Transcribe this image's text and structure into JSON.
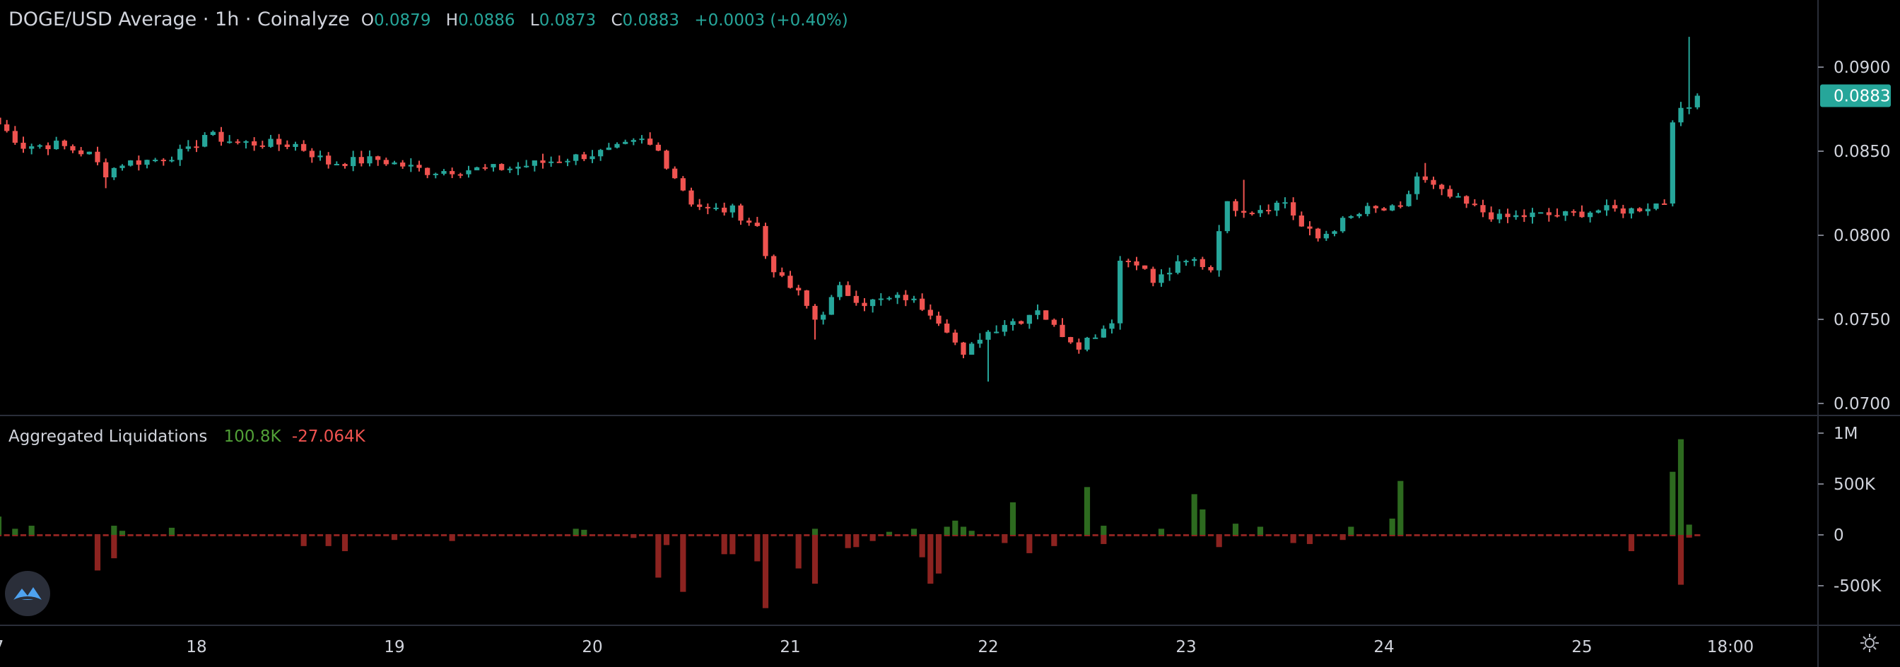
{
  "header": {
    "title": "DOGE/USD Average · 1h · Coinalyze",
    "ohlc": [
      {
        "key": "O",
        "value": "0.0879"
      },
      {
        "key": "H",
        "value": "0.0886"
      },
      {
        "key": "L",
        "value": "0.0873"
      },
      {
        "key": "C",
        "value": "0.0883"
      }
    ],
    "change": "+0.0003 (+0.40%)"
  },
  "indicator": {
    "name": "Aggregated Liquidations",
    "long_value": "100.8K",
    "short_value": "-27.064K"
  },
  "colors": {
    "up": "#26a69a",
    "down": "#ef5350",
    "liq_long": "#2d6a1f",
    "liq_short": "#8c2320",
    "last_price_bg": "#26a69a",
    "grid_sep": "#2a2e39",
    "axis_text": "#d1d4dc"
  },
  "icons": {
    "logo": "coinalyze-logo-icon",
    "settings": "gear-icon"
  },
  "chart_data": [
    {
      "type": "candlestick",
      "title": "DOGE/USD Average · 1h · Coinalyze",
      "ylim": [
        0.07,
        0.092
      ],
      "yticks": [
        {
          "value": 0.09,
          "label": "0.0900"
        },
        {
          "value": 0.085,
          "label": "0.0850"
        },
        {
          "value": 0.08,
          "label": "0.0800"
        },
        {
          "value": 0.075,
          "label": "0.0750"
        },
        {
          "value": 0.07,
          "label": "0.0700"
        }
      ],
      "last_price": {
        "value": 0.0883,
        "label": "0.0883"
      },
      "x_unit": "hours",
      "xlim": [
        0,
        204
      ],
      "xticks": [
        {
          "value": 0,
          "label": "7"
        },
        {
          "value": 24,
          "label": "18"
        },
        {
          "value": 48,
          "label": "19"
        },
        {
          "value": 72,
          "label": "20"
        },
        {
          "value": 96,
          "label": "21"
        },
        {
          "value": 120,
          "label": "22"
        },
        {
          "value": 144,
          "label": "23"
        },
        {
          "value": 168,
          "label": "24"
        },
        {
          "value": 192,
          "label": "25"
        },
        {
          "value": 210,
          "label": "18:00"
        }
      ],
      "keypoints_close": [
        [
          0,
          0.0866
        ],
        [
          3,
          0.0853
        ],
        [
          7,
          0.0854
        ],
        [
          11,
          0.0848
        ],
        [
          13,
          0.0837
        ],
        [
          15,
          0.0843
        ],
        [
          19,
          0.0845
        ],
        [
          23,
          0.085
        ],
        [
          25,
          0.086
        ],
        [
          29,
          0.0855
        ],
        [
          36,
          0.0854
        ],
        [
          40,
          0.0843
        ],
        [
          46,
          0.0845
        ],
        [
          52,
          0.0838
        ],
        [
          56,
          0.0839
        ],
        [
          62,
          0.084
        ],
        [
          68,
          0.0845
        ],
        [
          74,
          0.085
        ],
        [
          78,
          0.0856
        ],
        [
          80,
          0.085
        ],
        [
          82,
          0.0835
        ],
        [
          84,
          0.082
        ],
        [
          86,
          0.0815
        ],
        [
          89,
          0.0815
        ],
        [
          92,
          0.0805
        ],
        [
          93,
          0.0788
        ],
        [
          95,
          0.0773
        ],
        [
          97,
          0.0765
        ],
        [
          99,
          0.075
        ],
        [
          100,
          0.0755
        ],
        [
          102,
          0.0768
        ],
        [
          105,
          0.076
        ],
        [
          110,
          0.0763
        ],
        [
          113,
          0.0755
        ],
        [
          115,
          0.0745
        ],
        [
          117,
          0.0727
        ],
        [
          119,
          0.074
        ],
        [
          122,
          0.0748
        ],
        [
          124,
          0.075
        ],
        [
          126,
          0.0757
        ],
        [
          128,
          0.0745
        ],
        [
          131,
          0.0735
        ],
        [
          134,
          0.0745
        ],
        [
          135,
          0.075
        ],
        [
          136,
          0.0785
        ],
        [
          138,
          0.0785
        ],
        [
          140,
          0.0772
        ],
        [
          143,
          0.0782
        ],
        [
          145,
          0.0785
        ],
        [
          147,
          0.078
        ],
        [
          148,
          0.0805
        ],
        [
          149,
          0.0818
        ],
        [
          152,
          0.0815
        ],
        [
          156,
          0.082
        ],
        [
          158,
          0.0805
        ],
        [
          160,
          0.0798
        ],
        [
          163,
          0.0808
        ],
        [
          166,
          0.0815
        ],
        [
          170,
          0.0815
        ],
        [
          172,
          0.0835
        ],
        [
          175,
          0.0825
        ],
        [
          178,
          0.0818
        ],
        [
          182,
          0.081
        ],
        [
          186,
          0.0812
        ],
        [
          190,
          0.0812
        ],
        [
          194,
          0.0815
        ],
        [
          198,
          0.0815
        ],
        [
          202,
          0.082
        ],
        [
          203,
          0.087
        ],
        [
          205,
          0.0876
        ],
        [
          206,
          0.0883
        ]
      ],
      "spikes": [
        {
          "x": 13,
          "low": 0.0828
        },
        {
          "x": 120,
          "low": 0.0713
        },
        {
          "x": 99,
          "low": 0.0738
        },
        {
          "x": 151,
          "high": 0.0833
        },
        {
          "x": 173,
          "high": 0.0843
        },
        {
          "x": 205,
          "high": 0.0918,
          "low": 0.0872
        }
      ]
    },
    {
      "type": "bar",
      "title": "Aggregated Liquidations",
      "ylim": [
        -700000,
        1000000
      ],
      "yticks": [
        {
          "value": 1000000,
          "label": "1M"
        },
        {
          "value": 500000,
          "label": "500K"
        },
        {
          "value": 0,
          "label": "0"
        },
        {
          "value": -500000,
          "label": "-500K"
        }
      ],
      "series": [
        {
          "name": "long",
          "bars": [
            [
              0,
              180000
            ],
            [
              2,
              60000
            ],
            [
              4,
              90000
            ],
            [
              14,
              90000
            ],
            [
              15,
              40000
            ],
            [
              21,
              70000
            ],
            [
              70,
              60000
            ],
            [
              71,
              50000
            ],
            [
              99,
              60000
            ],
            [
              108,
              30000
            ],
            [
              111,
              60000
            ],
            [
              115,
              80000
            ],
            [
              116,
              140000
            ],
            [
              117,
              80000
            ],
            [
              118,
              40000
            ],
            [
              123,
              320000
            ],
            [
              132,
              470000
            ],
            [
              134,
              90000
            ],
            [
              141,
              60000
            ],
            [
              145,
              400000
            ],
            [
              146,
              250000
            ],
            [
              150,
              110000
            ],
            [
              153,
              80000
            ],
            [
              164,
              80000
            ],
            [
              169,
              160000
            ],
            [
              170,
              530000
            ],
            [
              203,
              620000
            ],
            [
              204,
              940000
            ],
            [
              205,
              100800
            ]
          ]
        },
        {
          "name": "short",
          "bars": [
            [
              12,
              -350000
            ],
            [
              14,
              -230000
            ],
            [
              37,
              -110000
            ],
            [
              40,
              -110000
            ],
            [
              42,
              -160000
            ],
            [
              48,
              -50000
            ],
            [
              55,
              -60000
            ],
            [
              77,
              -30000
            ],
            [
              80,
              -420000
            ],
            [
              81,
              -100000
            ],
            [
              83,
              -560000
            ],
            [
              88,
              -190000
            ],
            [
              89,
              -190000
            ],
            [
              92,
              -260000
            ],
            [
              93,
              -720000
            ],
            [
              97,
              -330000
            ],
            [
              99,
              -480000
            ],
            [
              103,
              -130000
            ],
            [
              104,
              -120000
            ],
            [
              106,
              -60000
            ],
            [
              112,
              -220000
            ],
            [
              113,
              -480000
            ],
            [
              114,
              -380000
            ],
            [
              122,
              -80000
            ],
            [
              125,
              -180000
            ],
            [
              128,
              -110000
            ],
            [
              134,
              -90000
            ],
            [
              148,
              -120000
            ],
            [
              157,
              -80000
            ],
            [
              159,
              -90000
            ],
            [
              163,
              -50000
            ],
            [
              198,
              -160000
            ],
            [
              204,
              -490000
            ],
            [
              205,
              -27064
            ]
          ]
        }
      ]
    }
  ]
}
